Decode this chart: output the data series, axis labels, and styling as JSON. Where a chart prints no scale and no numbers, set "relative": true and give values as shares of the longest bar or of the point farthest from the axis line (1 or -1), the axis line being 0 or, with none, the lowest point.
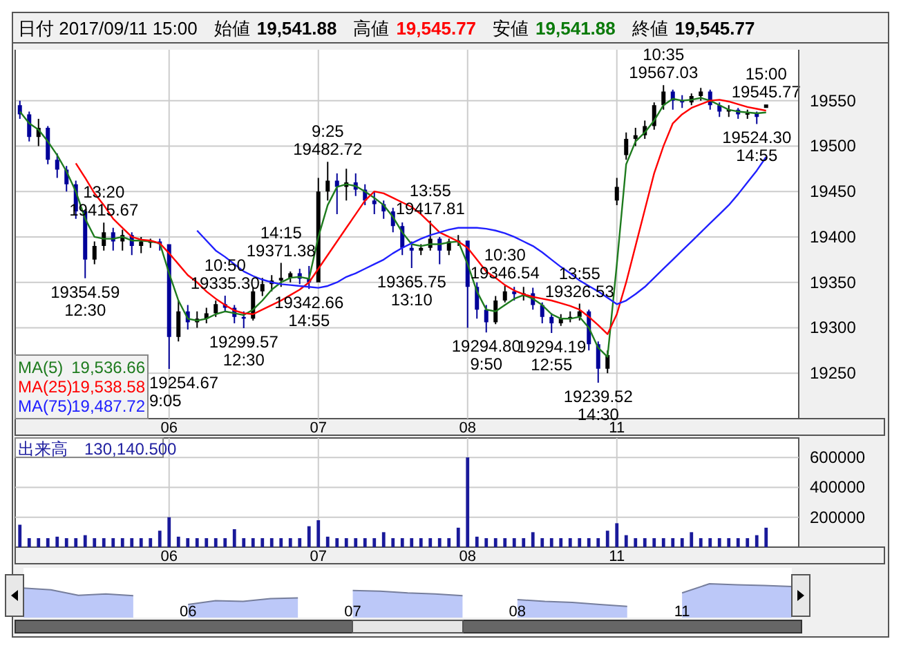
{
  "chart_data": [
    {
      "type": "candlestick",
      "title": "日付 2017/09/11 15:00",
      "categories": [
        null,
        null,
        null,
        null,
        null,
        null,
        null,
        null,
        null,
        null,
        null,
        null,
        null,
        null,
        null,
        null,
        "06",
        null,
        null,
        null,
        null,
        null,
        null,
        null,
        null,
        null,
        null,
        null,
        null,
        null,
        null,
        null,
        "07",
        null,
        null,
        null,
        null,
        null,
        null,
        null,
        null,
        null,
        null,
        null,
        null,
        null,
        null,
        null,
        "08",
        null,
        null,
        null,
        null,
        null,
        null,
        null,
        null,
        null,
        null,
        null,
        null,
        null,
        null,
        null,
        "11",
        null,
        null,
        null,
        null,
        null,
        null,
        null,
        null,
        null,
        null,
        null,
        null,
        null,
        null,
        null,
        null
      ],
      "ohlc": [
        [
          19545,
          19550,
          19530,
          19535
        ],
        [
          19535,
          19538,
          19505,
          19510
        ],
        [
          19510,
          19530,
          19500,
          19520
        ],
        [
          19520,
          19522,
          19480,
          19485
        ],
        [
          19485,
          19492,
          19465,
          19474
        ],
        [
          19474,
          19478,
          19450,
          19458
        ],
        [
          19458,
          19462,
          19420,
          19428
        ],
        [
          19428,
          19430,
          19354.59,
          19375
        ],
        [
          19375,
          19395,
          19370,
          19390
        ],
        [
          19390,
          19415.67,
          19385,
          19405
        ],
        [
          19405,
          19410,
          19385,
          19395
        ],
        [
          19395,
          19408,
          19385,
          19402
        ],
        [
          19402,
          19405,
          19380,
          19390
        ],
        [
          19390,
          19400,
          19382,
          19395
        ],
        [
          19395,
          19398,
          19388,
          19395
        ],
        [
          19395,
          19398,
          19385,
          19392
        ],
        [
          19392,
          19392,
          19254.67,
          19290
        ],
        [
          19290,
          19330,
          19285,
          19318
        ],
        [
          19318,
          19325,
          19298,
          19306
        ],
        [
          19306,
          19318,
          19300,
          19310
        ],
        [
          19310,
          19322,
          19305,
          19316
        ],
        [
          19316,
          19330,
          19312,
          19326
        ],
        [
          19326,
          19335.3,
          19318,
          19322
        ],
        [
          19322,
          19325,
          19305,
          19312
        ],
        [
          19312,
          19318,
          19299.57,
          19310
        ],
        [
          19310,
          19345,
          19308,
          19340
        ],
        [
          19340,
          19355,
          19335,
          19348
        ],
        [
          19348,
          19358,
          19340,
          19352
        ],
        [
          19352,
          19371.38,
          19345,
          19355
        ],
        [
          19355,
          19362,
          19350,
          19360
        ],
        [
          19360,
          19365,
          19348,
          19354
        ],
        [
          19354,
          19368,
          19342.66,
          19350
        ],
        [
          19350,
          19465,
          19350,
          19450
        ],
        [
          19450,
          19482.72,
          19440,
          19462
        ],
        [
          19462,
          19470,
          19425,
          19455
        ],
        [
          19455,
          19475,
          19440,
          19460
        ],
        [
          19460,
          19470,
          19445,
          19452
        ],
        [
          19452,
          19458,
          19435,
          19440
        ],
        [
          19440,
          19450,
          19425,
          19436
        ],
        [
          19436,
          19440,
          19420,
          19428
        ],
        [
          19428,
          19432,
          19405,
          19412
        ],
        [
          19412,
          19416,
          19380,
          19388
        ],
        [
          19388,
          19395,
          19365.75,
          19385
        ],
        [
          19385,
          19392,
          19380,
          19388
        ],
        [
          19388,
          19417.81,
          19385,
          19398
        ],
        [
          19398,
          19400,
          19370,
          19385
        ],
        [
          19385,
          19398,
          19380,
          19395
        ],
        [
          19395,
          19402,
          19390,
          19396
        ],
        [
          19396,
          19396,
          19300,
          19345
        ],
        [
          19345,
          19350,
          19310,
          19320
        ],
        [
          19320,
          19325,
          19294.8,
          19306
        ],
        [
          19306,
          19335,
          19304,
          19330
        ],
        [
          19330,
          19346.54,
          19328,
          19340
        ],
        [
          19340,
          19345,
          19330,
          19337
        ],
        [
          19337,
          19345,
          19330,
          19338
        ],
        [
          19338,
          19344,
          19320,
          19325
        ],
        [
          19325,
          19328,
          19305,
          19312
        ],
        [
          19312,
          19316,
          19294.19,
          19305
        ],
        [
          19305,
          19315,
          19302,
          19310
        ],
        [
          19310,
          19318,
          19306,
          19312
        ],
        [
          19312,
          19326.53,
          19308,
          19318
        ],
        [
          19318,
          19320,
          19275,
          19282
        ],
        [
          19282,
          19285,
          19239.52,
          19255
        ],
        [
          19255,
          19275,
          19250,
          19270
        ],
        [
          19440,
          19465,
          19435,
          19455
        ],
        [
          19490,
          19515,
          19485,
          19508
        ],
        [
          19508,
          19520,
          19500,
          19512
        ],
        [
          19512,
          19528,
          19508,
          19522
        ],
        [
          19522,
          19548,
          19518,
          19545
        ],
        [
          19545,
          19567.03,
          19540,
          19560
        ],
        [
          19560,
          19562,
          19540,
          19550
        ],
        [
          19550,
          19556,
          19542,
          19548
        ],
        [
          19548,
          19558,
          19545,
          19555
        ],
        [
          19555,
          19564,
          19550,
          19560
        ],
        [
          19560,
          19562,
          19540,
          19545
        ],
        [
          19545,
          19548,
          19532,
          19538
        ],
        [
          19538,
          19545,
          19532,
          19540
        ],
        [
          19540,
          19542,
          19530,
          19535
        ],
        [
          19535,
          19540,
          19530,
          19536
        ],
        [
          19536,
          19538,
          19524.3,
          19532
        ],
        [
          19541.88,
          19545.77,
          19541.88,
          19545.77
        ]
      ],
      "colors": [
        "#000099",
        "#000099",
        "#000000",
        "#000099",
        "#000099",
        "#000099",
        "#000099",
        "#000099",
        "#000000",
        "#000000",
        "#000099",
        "#000000",
        "#000099",
        "#000000",
        "#000000",
        "#000099",
        "#000099",
        "#000000",
        "#000099",
        "#000000",
        "#000000",
        "#000000",
        "#000099",
        "#000099",
        "#000099",
        "#000000",
        "#000000",
        "#000000",
        "#000000",
        "#000000",
        "#000099",
        "#000099",
        "#000000",
        "#000000",
        "#000099",
        "#000000",
        "#000099",
        "#000099",
        "#000099",
        "#000099",
        "#000099",
        "#000099",
        "#000099",
        "#000000",
        "#000000",
        "#000099",
        "#000000",
        "#000000",
        "#000099",
        "#000099",
        "#000099",
        "#000000",
        "#000000",
        "#000099",
        "#000000",
        "#000099",
        "#000099",
        "#000099",
        "#000000",
        "#000000",
        "#000000",
        "#000099",
        "#000099",
        "#000000",
        "#000000",
        "#000000",
        "#000000",
        "#000000",
        "#000000",
        "#000000",
        "#000099",
        "#000099",
        "#000000",
        "#000000",
        "#000099",
        "#000099",
        "#000000",
        "#000099",
        "#000000",
        "#000099",
        "#000000"
      ],
      "series": [
        {
          "type": "line",
          "name": "MA(5)",
          "color": "#1e7b1e",
          "values": [
            19538,
            19525,
            19518,
            19505,
            19490,
            19472,
            19450,
            19420,
            19400,
            19398,
            19398,
            19400,
            19396,
            19396,
            19395,
            19393,
            19360,
            19330,
            19310,
            19308,
            19310,
            19315,
            19318,
            19316,
            19314,
            19320,
            19330,
            19342,
            19350,
            19355,
            19356,
            19354,
            19400,
            19435,
            19455,
            19458,
            19456,
            19450,
            19443,
            19435,
            19422,
            19405,
            19392,
            19390,
            19392,
            19392,
            19394,
            19395,
            19370,
            19340,
            19320,
            19318,
            19325,
            19332,
            19336,
            19332,
            19325,
            19315,
            19310,
            19310,
            19312,
            19300,
            19278,
            19268,
            19370,
            19480,
            19505,
            19515,
            19528,
            19545,
            19552,
            19550,
            19551,
            19553,
            19550,
            19545,
            19540,
            19538,
            19537,
            19536,
            19537
          ]
        },
        {
          "type": "line",
          "name": "MA(25)",
          "color": "#ff0000",
          "values": [
            null,
            null,
            null,
            null,
            null,
            null,
            19481,
            19465,
            19448,
            19435,
            19420,
            19410,
            19400,
            19397,
            19396,
            19393,
            19382,
            19370,
            19358,
            19350,
            19340,
            19332,
            19325,
            19319,
            19316,
            19315,
            19320,
            19325,
            19330,
            19336,
            19342,
            19350,
            19365,
            19380,
            19395,
            19410,
            19425,
            19440,
            19450,
            19448,
            19443,
            19438,
            19433,
            19425,
            19415,
            19405,
            19400,
            19395,
            19388,
            19375,
            19362,
            19355,
            19347,
            19341,
            19337,
            19334,
            19332,
            19330,
            19327,
            19324,
            19320,
            19312,
            19303,
            19293,
            19315,
            19350,
            19390,
            19430,
            19470,
            19500,
            19525,
            19535,
            19542,
            19546,
            19550,
            19551,
            19549,
            19546,
            19543,
            19541,
            19539
          ]
        },
        {
          "type": "line",
          "name": "MA(75)",
          "color": "#2020ff",
          "values": [
            null,
            null,
            null,
            null,
            null,
            null,
            null,
            null,
            null,
            null,
            null,
            null,
            null,
            null,
            null,
            null,
            null,
            null,
            null,
            19407,
            19396,
            19385,
            19378,
            19370,
            19362,
            19357,
            19353,
            19350,
            19348,
            19347,
            19346,
            19345,
            19344,
            19346,
            19350,
            19356,
            19360,
            19365,
            19370,
            19375,
            19382,
            19388,
            19393,
            19398,
            19402,
            19405,
            19408,
            19410,
            19410,
            19410,
            19409,
            19407,
            19404,
            19400,
            19395,
            19390,
            19383,
            19375,
            19367,
            19360,
            19352,
            19346,
            19340,
            19333,
            19326,
            19330,
            19337,
            19345,
            19355,
            19365,
            19375,
            19385,
            19395,
            19405,
            19415,
            19425,
            19435,
            19447,
            19460,
            19473,
            19488
          ]
        }
      ],
      "ylim": [
        19200,
        19606
      ],
      "yticks": [
        19250,
        19300,
        19350,
        19400,
        19450,
        19500,
        19550
      ],
      "grid": true,
      "legend": "bottom left",
      "annotations": [
        "始値",
        "19,541.88",
        "高値",
        "19,545.77",
        "安値",
        "19,541.88",
        "終値",
        "19,545.77",
        "19,536.66",
        "19,538.58",
        "19,487.72",
        {
          "text": "19354.59\n12:30",
          "y": 19354.59
        },
        {
          "text": "13:20\n19415.67",
          "y": 19415.67
        },
        {
          "text": "19254.67\n9:05",
          "x": "06",
          "y": 19254.67
        },
        {
          "text": "10:50\n19335.30",
          "y": 19335.3
        },
        {
          "text": "19299.57\n12:30",
          "y": 19299.57
        },
        {
          "text": "14:15\n19371.38",
          "y": 19371.38
        },
        {
          "text": "19342.66\n14:55",
          "y": 19342.66
        },
        {
          "text": "9:25\n19482.72",
          "y": 19482.72
        },
        {
          "text": "19365.75\n13:10",
          "y": 19365.75
        },
        {
          "text": "13:55\n19417.81",
          "y": 19417.81
        },
        {
          "text": "19294.80\n9:50",
          "y": 19294.8
        },
        {
          "text": "10:30\n19346.54",
          "y": 19346.54
        },
        {
          "text": "19294.19\n12:55",
          "y": 19294.19
        },
        {
          "text": "13:55\n19326.53",
          "y": 19326.53
        },
        {
          "text": "19239.52\n14:30",
          "y": 19239.52
        },
        {
          "text": "10:35\n19567.03",
          "y": 19567.03
        },
        {
          "text": "19524.30\n14:55",
          "y": 19524.3
        },
        {
          "text": "15:00\n19545.77",
          "y": 19545.77
        }
      ]
    },
    {
      "type": "bar",
      "color": "#1a1a9a",
      "categories": [
        null,
        null,
        null,
        null,
        null,
        null,
        null,
        null,
        null,
        null,
        null,
        null,
        null,
        null,
        null,
        null,
        "06",
        null,
        null,
        null,
        null,
        null,
        null,
        null,
        null,
        null,
        null,
        null,
        null,
        null,
        null,
        null,
        "07",
        null,
        null,
        null,
        null,
        null,
        null,
        null,
        null,
        null,
        null,
        null,
        null,
        null,
        null,
        null,
        "08",
        null,
        null,
        null,
        null,
        null,
        null,
        null,
        null,
        null,
        null,
        null,
        null,
        null,
        null,
        null,
        "11",
        null,
        null,
        null,
        null,
        null,
        null,
        null,
        null,
        null,
        null,
        null,
        null,
        null,
        null,
        null,
        null
      ],
      "values": [
        150000,
        60000,
        60000,
        60000,
        70000,
        60000,
        60000,
        80000,
        60000,
        60000,
        60000,
        60000,
        60000,
        60000,
        60000,
        110000,
        200000,
        70000,
        60000,
        60000,
        60000,
        60000,
        60000,
        120000,
        60000,
        60000,
        60000,
        60000,
        60000,
        60000,
        60000,
        140000,
        180000,
        70000,
        60000,
        60000,
        60000,
        60000,
        60000,
        100000,
        60000,
        60000,
        60000,
        60000,
        60000,
        60000,
        60000,
        130000,
        600000,
        70000,
        60000,
        60000,
        60000,
        60000,
        60000,
        100000,
        60000,
        60000,
        60000,
        60000,
        60000,
        60000,
        60000,
        110000,
        160000,
        80000,
        60000,
        60000,
        60000,
        60000,
        60000,
        60000,
        100000,
        60000,
        60000,
        60000,
        60000,
        60000,
        60000,
        80000,
        130000
      ],
      "ylim": [
        0,
        730000
      ],
      "yticks": [
        200000,
        400000,
        600000
      ],
      "grid": true,
      "annotations": [
        "出来高",
        "130,140.500"
      ]
    },
    {
      "type": "area",
      "relative": true,
      "color": "#bcc8f8",
      "categories": [
        null,
        null,
        null,
        null,
        null,
        null,
        "06",
        null,
        null,
        null,
        null,
        null,
        "07",
        null,
        null,
        null,
        null,
        null,
        "08",
        null,
        null,
        null,
        null,
        null,
        "11",
        null,
        null,
        null,
        null
      ],
      "values": [
        0.87,
        0.82,
        0.66,
        0.7,
        0.65,
        null,
        0.39,
        0.5,
        0.48,
        0.56,
        0.58,
        null,
        0.8,
        0.78,
        0.73,
        0.7,
        0.65,
        null,
        0.53,
        0.48,
        0.45,
        0.39,
        0.33,
        null,
        0.73,
        1,
        0.97,
        0.95,
        0.92
      ]
    }
  ]
}
